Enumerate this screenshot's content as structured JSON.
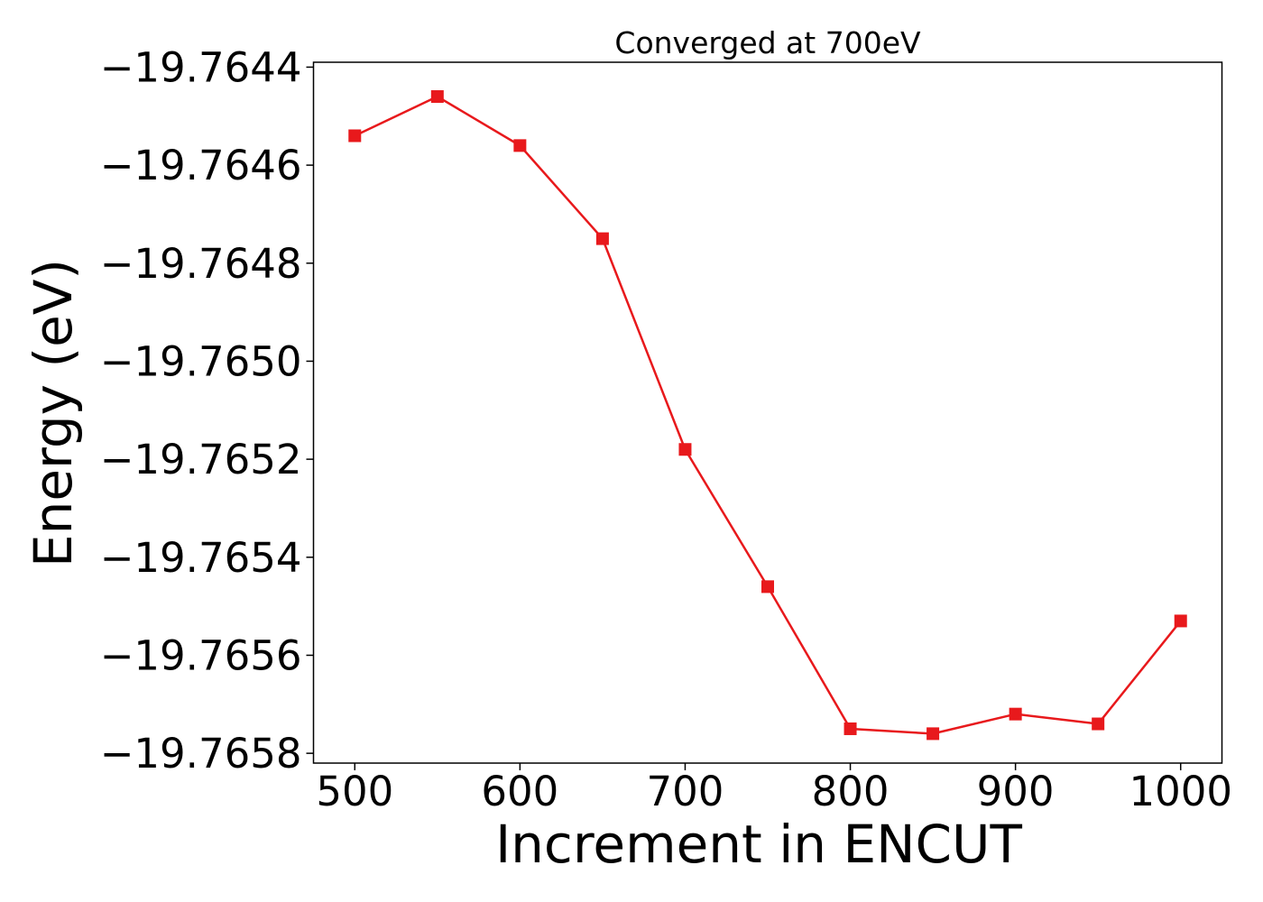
{
  "chart_data": {
    "type": "line",
    "title": "Converged at 700eV",
    "xlabel": "Increment in ENCUT",
    "ylabel": "Energy (eV)",
    "x": [
      500,
      550,
      600,
      650,
      700,
      750,
      800,
      850,
      900,
      950,
      1000
    ],
    "series": [
      {
        "name": "",
        "color": "#e8191c",
        "marker": "square",
        "values": [
          -19.76454,
          -19.76446,
          -19.76456,
          -19.76475,
          -19.76518,
          -19.76546,
          -19.76575,
          -19.76576,
          -19.76572,
          -19.76574,
          -19.76553
        ]
      }
    ],
    "xlim": [
      475,
      1025
    ],
    "ylim": [
      -19.76582,
      -19.76439
    ],
    "xticks": [
      500,
      600,
      700,
      800,
      900,
      1000
    ],
    "xtick_labels": [
      "500",
      "600",
      "700",
      "800",
      "900",
      "1000"
    ],
    "yticks": [
      -19.7658,
      -19.7656,
      -19.7654,
      -19.7652,
      -19.765,
      -19.7648,
      -19.7646,
      -19.7644
    ],
    "ytick_labels": [
      "−19.7658",
      "−19.7656",
      "−19.7654",
      "−19.7652",
      "−19.7650",
      "−19.7648",
      "−19.7646",
      "−19.7644"
    ],
    "grid": false,
    "legend": "none"
  }
}
